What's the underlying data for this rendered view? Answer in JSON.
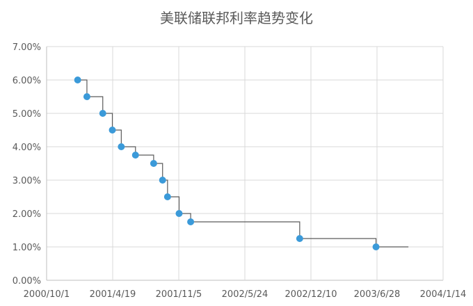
{
  "chart_data": {
    "type": "line",
    "step": true,
    "title": "美联储联邦利率趋势变化",
    "xlabel": "",
    "ylabel": "",
    "y_ticks": [
      "0.00%",
      "1.00%",
      "2.00%",
      "3.00%",
      "4.00%",
      "5.00%",
      "6.00%",
      "7.00%"
    ],
    "ylim": [
      0,
      7
    ],
    "x_ticks": [
      "2000/10/1",
      "2001/4/19",
      "2001/11/5",
      "2002/5/24",
      "2002/12/10",
      "2003/6/28",
      "2004/1/14"
    ],
    "xlim": [
      "2000/10/1",
      "2004/1/14"
    ],
    "grid": true,
    "legend": "none",
    "colors": {
      "line": "#5a5a5a",
      "marker": "#3b9ad9",
      "grid": "#d9d9d9",
      "text": "#595959"
    },
    "series": [
      {
        "points": [
          {
            "x": "2001/1/3",
            "y": 6.0
          },
          {
            "x": "2001/1/31",
            "y": 5.5
          },
          {
            "x": "2001/3/20",
            "y": 5.0
          },
          {
            "x": "2001/4/18",
            "y": 4.5
          },
          {
            "x": "2001/5/15",
            "y": 4.0
          },
          {
            "x": "2001/6/27",
            "y": 3.75
          },
          {
            "x": "2001/8/21",
            "y": 3.5
          },
          {
            "x": "2001/9/17",
            "y": 3.0
          },
          {
            "x": "2001/10/2",
            "y": 2.5
          },
          {
            "x": "2001/11/6",
            "y": 2.0
          },
          {
            "x": "2001/12/11",
            "y": 1.75
          },
          {
            "x": "2002/11/6",
            "y": 1.25
          },
          {
            "x": "2003/6/25",
            "y": 1.0
          }
        ],
        "line_end": "2003/10/1"
      }
    ]
  }
}
